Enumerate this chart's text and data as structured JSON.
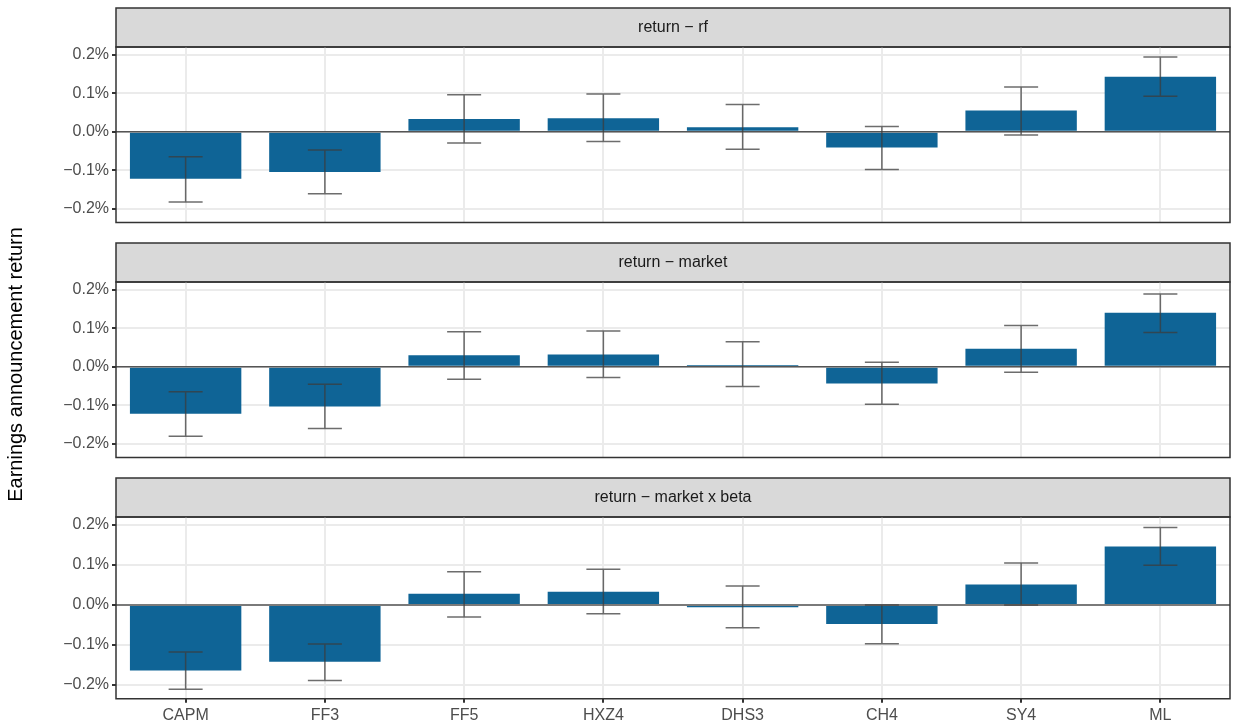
{
  "chart_data": [
    {
      "type": "bar",
      "title": "return − rf",
      "categories": [
        null,
        null,
        null,
        null,
        null,
        null,
        null,
        null
      ],
      "color": "#0f6496",
      "values": [
        -0.122,
        -0.104,
        0.033,
        0.035,
        0.012,
        -0.041,
        0.055,
        0.143
      ],
      "errors": [
        [
          -0.182,
          -0.065
        ],
        [
          -0.161,
          -0.047
        ],
        [
          -0.029,
          0.096
        ],
        [
          -0.025,
          0.098
        ],
        [
          -0.045,
          0.071
        ],
        [
          -0.098,
          0.014
        ],
        [
          -0.008,
          0.116
        ],
        [
          0.092,
          0.194
        ]
      ],
      "ylim": [
        -0.235,
        0.22
      ],
      "yticks": [
        {
          "value": -0.2,
          "label": "−0.2%"
        },
        {
          "value": -0.1,
          "label": "−0.1%"
        },
        {
          "value": 0,
          "label": "0.0%"
        },
        {
          "value": 0.1,
          "label": "0.1%"
        },
        {
          "value": 0.2,
          "label": "0.2%"
        }
      ],
      "ref_lines": [
        {
          "axis": "y",
          "value": 0,
          "color": "#555555"
        }
      ],
      "grid": true,
      "legend": false,
      "tick_labels": "y"
    },
    {
      "type": "bar",
      "title": "return − market",
      "ylabel": "Earnings announcement return",
      "categories": [
        null,
        null,
        null,
        null,
        null,
        null,
        null,
        null
      ],
      "color": "#0f6496",
      "values": [
        -0.122,
        -0.103,
        0.03,
        0.032,
        0.005,
        -0.043,
        0.047,
        0.14
      ],
      "errors": [
        [
          -0.18,
          -0.065
        ],
        [
          -0.16,
          -0.045
        ],
        [
          -0.032,
          0.091
        ],
        [
          -0.028,
          0.093
        ],
        [
          -0.051,
          0.065
        ],
        [
          -0.097,
          0.012
        ],
        [
          -0.014,
          0.107
        ],
        [
          0.089,
          0.189
        ]
      ],
      "ylim": [
        -0.235,
        0.22
      ],
      "yticks": [
        {
          "value": -0.2,
          "label": "−0.2%"
        },
        {
          "value": -0.1,
          "label": "−0.1%"
        },
        {
          "value": 0,
          "label": "0.0%"
        },
        {
          "value": 0.1,
          "label": "0.1%"
        },
        {
          "value": 0.2,
          "label": "0.2%"
        }
      ],
      "ref_lines": [
        {
          "axis": "y",
          "value": 0,
          "color": "#555555"
        }
      ],
      "grid": true,
      "legend": false,
      "tick_labels": "y"
    },
    {
      "type": "bar",
      "title": "return − market x beta",
      "categories": [
        "CAPM",
        "FF3",
        "FF5",
        "HXZ4",
        "DHS3",
        "CH4",
        "SY4",
        "ML"
      ],
      "color": "#0f6496",
      "values": [
        -0.164,
        -0.142,
        0.028,
        0.033,
        -0.006,
        -0.048,
        0.051,
        0.146
      ],
      "errors": [
        [
          -0.211,
          -0.118
        ],
        [
          -0.189,
          -0.098
        ],
        [
          -0.03,
          0.083
        ],
        [
          -0.022,
          0.089
        ],
        [
          -0.057,
          0.047
        ],
        [
          -0.097,
          0
        ],
        [
          0,
          0.105
        ],
        [
          0.099,
          0.194
        ]
      ],
      "ylim": [
        -0.235,
        0.22
      ],
      "yticks": [
        {
          "value": -0.2,
          "label": "−0.2%"
        },
        {
          "value": -0.1,
          "label": "−0.1%"
        },
        {
          "value": 0,
          "label": "0.0%"
        },
        {
          "value": 0.1,
          "label": "0.1%"
        },
        {
          "value": 0.2,
          "label": "0.2%"
        }
      ],
      "ref_lines": [
        {
          "axis": "y",
          "value": 0,
          "color": "#555555"
        }
      ],
      "grid": true,
      "legend": false
    }
  ]
}
